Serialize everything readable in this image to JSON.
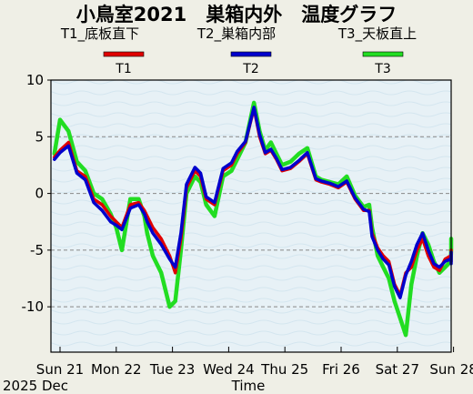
{
  "chart_data": {
    "type": "line",
    "title": "小鳥室2021　巣箱内外　温度グラフ",
    "xlabel": "Time",
    "ylabel": "",
    "ylim": [
      -14,
      10
    ],
    "yticks": [
      10,
      5,
      0,
      -5,
      -10
    ],
    "xlim": [
      0,
      7.35
    ],
    "xticks": [
      {
        "x": 0,
        "label": "Sun 21"
      },
      {
        "x": 1,
        "label": "Mon 22"
      },
      {
        "x": 2,
        "label": "Tue 23"
      },
      {
        "x": 3,
        "label": "Wed 24"
      },
      {
        "x": 4,
        "label": "Thu 25"
      },
      {
        "x": 5,
        "label": "Fri 26"
      },
      {
        "x": 6,
        "label": "Sat 27"
      },
      {
        "x": 7,
        "label": "Sun 28"
      }
    ],
    "date_label": "2025 Dec",
    "grid": "horizontal dashed",
    "legend_position": "top",
    "x_units": "days since Sun 21 00:00",
    "series": [
      {
        "name": "T1_底板直下",
        "legend_label": "T1",
        "color": "#e00000",
        "x": [
          -0.1,
          0,
          0.15,
          0.3,
          0.45,
          0.6,
          0.75,
          0.9,
          1.0,
          1.1,
          1.25,
          1.4,
          1.5,
          1.55,
          1.65,
          1.8,
          1.95,
          2.05,
          2.15,
          2.25,
          2.4,
          2.5,
          2.6,
          2.75,
          2.9,
          3.05,
          3.15,
          3.3,
          3.45,
          3.55,
          3.65,
          3.75,
          3.85,
          3.95,
          4.1,
          4.25,
          4.4,
          4.55,
          4.65,
          4.8,
          4.95,
          5.1,
          5.25,
          5.4,
          5.5,
          5.55,
          5.65,
          5.75,
          5.85,
          5.95,
          6.05,
          6.15,
          6.25,
          6.35,
          6.45,
          6.55,
          6.65,
          6.75,
          6.85,
          6.95,
          7.05,
          7.15,
          7.25,
          7.35
        ],
        "values": [
          3.2,
          3.8,
          4.5,
          2.0,
          1.5,
          -0.5,
          -1.0,
          -2.0,
          -2.5,
          -3.0,
          -1.0,
          -0.8,
          -1.5,
          -2.0,
          -3.0,
          -4.0,
          -5.5,
          -7.0,
          -4.0,
          0.5,
          2.0,
          1.5,
          -0.5,
          -1.0,
          2.0,
          2.5,
          3.5,
          4.5,
          7.5,
          5.0,
          3.5,
          3.8,
          3.0,
          2.0,
          2.2,
          2.8,
          3.5,
          1.2,
          1.0,
          0.8,
          0.5,
          1.0,
          -0.5,
          -1.5,
          -1.5,
          -3.5,
          -4.8,
          -5.5,
          -6.0,
          -8.0,
          -9.0,
          -7.0,
          -6.5,
          -5.0,
          -4.0,
          -5.5,
          -6.5,
          -6.8,
          -5.8,
          -5.5,
          -5.5,
          -6.0,
          -5.5,
          -5.0
        ]
      },
      {
        "name": "T2_巣箱内部",
        "legend_label": "T2",
        "color": "#0000cc",
        "x": [
          -0.1,
          0,
          0.15,
          0.3,
          0.45,
          0.6,
          0.75,
          0.9,
          1.0,
          1.1,
          1.25,
          1.4,
          1.5,
          1.55,
          1.65,
          1.8,
          1.95,
          2.05,
          2.15,
          2.25,
          2.4,
          2.5,
          2.6,
          2.75,
          2.9,
          3.05,
          3.15,
          3.3,
          3.45,
          3.55,
          3.65,
          3.75,
          3.85,
          3.95,
          4.1,
          4.25,
          4.4,
          4.55,
          4.65,
          4.8,
          4.95,
          5.1,
          5.25,
          5.4,
          5.5,
          5.55,
          5.65,
          5.75,
          5.85,
          5.95,
          6.05,
          6.15,
          6.25,
          6.35,
          6.45,
          6.55,
          6.65,
          6.75,
          6.85,
          6.95,
          7.05,
          7.15,
          7.25,
          7.35
        ],
        "values": [
          3.0,
          3.6,
          4.2,
          1.8,
          1.2,
          -0.8,
          -1.5,
          -2.5,
          -2.8,
          -3.2,
          -1.3,
          -1.0,
          -1.8,
          -2.5,
          -3.5,
          -4.5,
          -5.8,
          -6.5,
          -3.5,
          0.8,
          2.3,
          1.8,
          -0.3,
          -0.8,
          2.2,
          2.7,
          3.7,
          4.6,
          7.6,
          5.2,
          3.6,
          3.9,
          3.1,
          2.1,
          2.3,
          2.9,
          3.6,
          1.3,
          1.1,
          0.9,
          0.6,
          1.1,
          -0.4,
          -1.4,
          -1.6,
          -3.8,
          -5.0,
          -5.8,
          -6.3,
          -8.2,
          -9.2,
          -7.2,
          -6.0,
          -4.5,
          -3.5,
          -5.0,
          -6.2,
          -6.5,
          -6.0,
          -5.8,
          -5.6,
          -6.2,
          -5.7,
          -5.2
        ]
      },
      {
        "name": "T3_天板直上",
        "legend_label": "T3",
        "color": "#22dd22",
        "x": [
          -0.1,
          0,
          0.15,
          0.3,
          0.45,
          0.6,
          0.75,
          0.9,
          1.0,
          1.1,
          1.25,
          1.4,
          1.5,
          1.55,
          1.65,
          1.8,
          1.95,
          2.05,
          2.15,
          2.25,
          2.4,
          2.5,
          2.6,
          2.75,
          2.9,
          3.05,
          3.15,
          3.3,
          3.45,
          3.55,
          3.65,
          3.75,
          3.85,
          3.95,
          4.1,
          4.25,
          4.4,
          4.55,
          4.65,
          4.8,
          4.95,
          5.1,
          5.25,
          5.4,
          5.5,
          5.55,
          5.65,
          5.75,
          5.85,
          5.95,
          6.05,
          6.15,
          6.25,
          6.35,
          6.45,
          6.55,
          6.65,
          6.75,
          6.85,
          6.95,
          7.05,
          7.15,
          7.25,
          7.35
        ],
        "values": [
          3.5,
          6.5,
          5.5,
          2.8,
          2.0,
          0.0,
          -0.5,
          -1.8,
          -3.0,
          -5.0,
          -0.5,
          -0.5,
          -2.0,
          -3.5,
          -5.5,
          -7.0,
          -10.0,
          -9.5,
          -5.0,
          0.0,
          1.5,
          1.0,
          -1.0,
          -2.0,
          1.5,
          2.0,
          3.0,
          4.5,
          8.0,
          5.5,
          3.8,
          4.5,
          3.5,
          2.5,
          2.8,
          3.5,
          4.0,
          1.5,
          1.2,
          1.0,
          0.8,
          1.5,
          -0.2,
          -1.2,
          -1.0,
          -3.0,
          -5.5,
          -6.5,
          -7.5,
          -9.5,
          -11.0,
          -12.5,
          -8.0,
          -5.5,
          -3.5,
          -4.5,
          -6.0,
          -7.0,
          -6.5,
          -6.0,
          -5.0,
          -4.8,
          -4.5,
          -4.0
        ]
      }
    ]
  }
}
